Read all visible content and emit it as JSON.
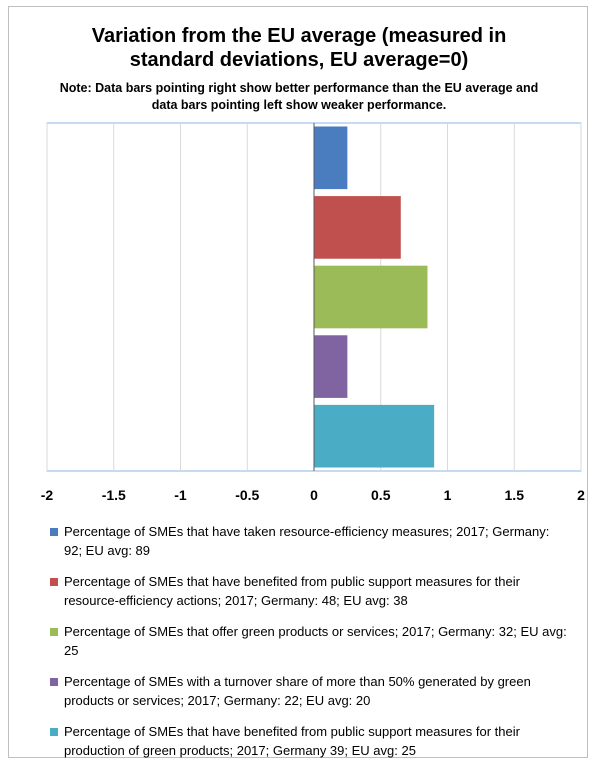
{
  "chart_data": {
    "type": "bar",
    "orientation": "horizontal",
    "title": "Variation from the EU average (measured in standard deviations, EU average=0)",
    "subtitle": "Note: Data bars pointing right show better performance than the EU average and data bars pointing left show weaker performance.",
    "xlim": [
      -2,
      2
    ],
    "xticks": [
      "-2",
      "-1.5",
      "-1",
      "-0.5",
      "0",
      "0.5",
      "1",
      "1.5",
      "2"
    ],
    "grid": true,
    "legend_position": "bottom",
    "series": [
      {
        "name": "Percentage of SMEs that have taken resource-efficiency measures; 2017; Germany: 92; EU avg: 89",
        "value": 0.25,
        "color": "#4a7dbf"
      },
      {
        "name": "Percentage of SMEs that have benefited from public support measures for their resource-efficiency actions; 2017; Germany: 48; EU avg: 38",
        "value": 0.65,
        "color": "#c0504d"
      },
      {
        "name": "Percentage of SMEs that offer green products or services; 2017; Germany: 32; EU avg: 25",
        "value": 0.85,
        "color": "#9bbb59"
      },
      {
        "name": "Percentage of SMEs with a turnover share of more than 50% generated by green products or services; 2017; Germany: 22; EU avg: 20",
        "value": 0.25,
        "color": "#8064a2"
      },
      {
        "name": "Percentage of SMEs that have benefited from public support measures for their production of green products; 2017; Germany 39; EU avg: 25",
        "value": 0.9,
        "color": "#4bacc6"
      }
    ]
  }
}
